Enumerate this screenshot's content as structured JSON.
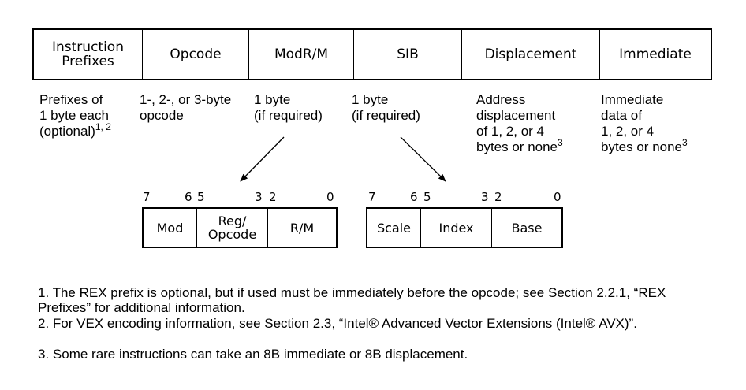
{
  "fields": [
    {
      "label": "Instruction\nPrefixes",
      "desc": "Prefixes of\n1 byte each\n(optional)",
      "sup": "1, 2"
    },
    {
      "label": "Opcode",
      "desc": "1-, 2-, or 3-byte\nopcode",
      "sup": ""
    },
    {
      "label": "ModR/M",
      "desc": "1 byte\n(if required)",
      "sup": ""
    },
    {
      "label": "SIB",
      "desc": "1 byte\n(if required)",
      "sup": ""
    },
    {
      "label": "Displacement",
      "desc": "Address\ndisplacement\nof 1, 2, or 4\nbytes or none",
      "sup": "3"
    },
    {
      "label": "Immediate",
      "desc": "Immediate\ndata of\n1, 2, or 4\nbytes or none",
      "sup": "3"
    }
  ],
  "modrm": {
    "bits": [
      "7",
      "6",
      "5",
      "3",
      "2",
      "0"
    ],
    "cells": [
      "Mod",
      "Reg/\nOpcode",
      "R/M"
    ]
  },
  "sib": {
    "bits": [
      "7",
      "6",
      "5",
      "3",
      "2",
      "0"
    ],
    "cells": [
      "Scale",
      "Index",
      "Base"
    ]
  },
  "notes": [
    "1. The REX prefix is optional, but if used must be immediately before the opcode; see Section 2.2.1, “REX Prefixes” for additional information.",
    "2. For VEX encoding information, see Section 2.3, “Intel® Advanced Vector Extensions (Intel® AVX)”.",
    "3. Some rare instructions can take an 8B immediate or 8B displacement."
  ]
}
